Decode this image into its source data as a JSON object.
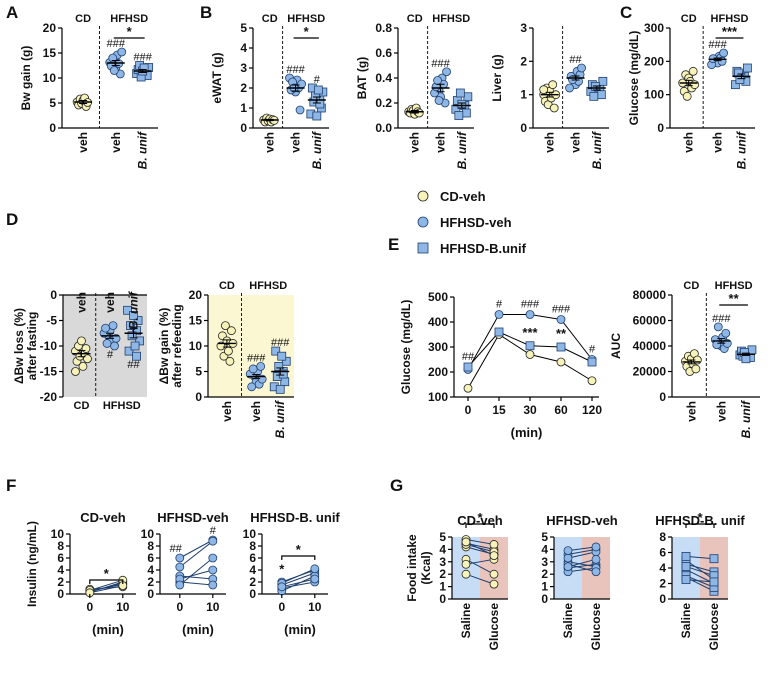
{
  "panel_labels": [
    "A",
    "B",
    "C",
    "D",
    "E",
    "F",
    "G"
  ],
  "groups": {
    "cd": "CD",
    "hfhsd": "HFHSD"
  },
  "colors": {
    "cd_fill": "#f6f2b8",
    "hf_fill": "#8fb7e6",
    "hf_stroke": "#1f3f6e",
    "fast_shade": "#d9d9d9",
    "refeed_shade": "#fbf7d2",
    "saline_shade": "#c6ddf5",
    "glucose_shade": "#e8c4bd"
  },
  "chart_data": [
    {
      "id": "A",
      "type": "scatter",
      "ylabel": "Bw gain (g)",
      "ylim": [
        0,
        20
      ],
      "yticks": [
        0,
        5,
        10,
        15,
        20
      ],
      "categories": [
        "veh",
        "veh",
        "B. unif"
      ],
      "values": [
        [
          5.2,
          4.6,
          5.8,
          4.9,
          5.5,
          6.0,
          4.3,
          5.1
        ],
        [
          13.5,
          11.8,
          14.6,
          12.9,
          10.8,
          15.2,
          13.1,
          12.4,
          14.0,
          11.5
        ],
        [
          11.2,
          10.5,
          12.1,
          10.9,
          11.7,
          12.5,
          10.2,
          11.4,
          12.0
        ]
      ],
      "means": [
        5.2,
        13.0,
        11.4
      ],
      "sems": [
        0.3,
        0.5,
        0.3
      ],
      "hash": [
        "",
        "###",
        "###"
      ],
      "sig": "*"
    },
    {
      "id": "B-eWAT",
      "type": "scatter",
      "ylabel": "eWAT (g)",
      "ylim": [
        0,
        5
      ],
      "yticks": [
        0,
        1,
        2,
        3,
        4,
        5
      ],
      "categories": [
        "veh",
        "veh",
        "B. unif"
      ],
      "values": [
        [
          0.4,
          0.3,
          0.5,
          0.35,
          0.45,
          0.3,
          0.42,
          0.38
        ],
        [
          2.1,
          1.8,
          2.4,
          2.0,
          0.9,
          2.2,
          2.5,
          1.9,
          2.3,
          2.0
        ],
        [
          1.5,
          1.0,
          1.8,
          0.7,
          2.0,
          1.3,
          1.6,
          0.6,
          1.9,
          1.2
        ]
      ],
      "means": [
        0.4,
        2.0,
        1.4
      ],
      "sems": [
        0.03,
        0.15,
        0.15
      ],
      "hash": [
        "",
        "###",
        "#"
      ],
      "sig": "*"
    },
    {
      "id": "B-BAT",
      "type": "scatter",
      "ylabel": "BAT (g)",
      "ylim": [
        0,
        0.8
      ],
      "yticks": [
        0,
        0.2,
        0.4,
        0.6,
        0.8
      ],
      "ytick_labels": [
        "0.0",
        "0.2",
        "0.4",
        "0.6",
        "0.8"
      ],
      "categories": [
        "veh",
        "veh",
        "B. unif"
      ],
      "values": [
        [
          0.13,
          0.12,
          0.15,
          0.14,
          0.11,
          0.16,
          0.13,
          0.12
        ],
        [
          0.3,
          0.25,
          0.4,
          0.35,
          0.2,
          0.45,
          0.28,
          0.33,
          0.38,
          0.22
        ],
        [
          0.18,
          0.12,
          0.25,
          0.15,
          0.22,
          0.1,
          0.28,
          0.19
        ]
      ],
      "means": [
        0.13,
        0.32,
        0.18
      ],
      "sems": [
        0.01,
        0.03,
        0.02
      ],
      "hash": [
        "",
        "###",
        ""
      ],
      "sig": ""
    },
    {
      "id": "B-Liver",
      "type": "scatter",
      "ylabel": "Liver (g)",
      "ylim": [
        0,
        3
      ],
      "yticks": [
        0,
        1,
        2,
        3
      ],
      "categories": [
        "veh",
        "veh",
        "B. unif"
      ],
      "values": [
        [
          1.0,
          0.8,
          1.2,
          0.7,
          1.1,
          0.9,
          1.3,
          0.6,
          1.0,
          1.15
        ],
        [
          1.5,
          1.3,
          1.7,
          1.4,
          1.6,
          1.8,
          1.2,
          1.55,
          1.45
        ],
        [
          1.2,
          1.0,
          1.4,
          1.1,
          1.3,
          0.95,
          1.25
        ]
      ],
      "means": [
        1.0,
        1.5,
        1.2
      ],
      "sems": [
        0.07,
        0.06,
        0.06
      ],
      "hash": [
        "",
        "##",
        ""
      ],
      "sig": ""
    },
    {
      "id": "C",
      "type": "scatter",
      "ylabel": "Glucose (mg/dL)",
      "ylim": [
        0,
        300
      ],
      "yticks": [
        0,
        100,
        200,
        300
      ],
      "categories": [
        "veh",
        "veh",
        "B. unif"
      ],
      "values": [
        [
          135,
          110,
          160,
          95,
          150,
          140,
          120,
          170,
          130
        ],
        [
          205,
          195,
          215,
          210,
          200,
          225,
          190,
          208
        ],
        [
          155,
          140,
          180,
          130,
          170,
          165,
          145
        ]
      ],
      "means": [
        135,
        206,
        155
      ],
      "sems": [
        8,
        4,
        7
      ],
      "hash": [
        "",
        "###",
        ""
      ],
      "sig": "***"
    },
    {
      "id": "D-fast",
      "type": "scatter",
      "ylabel": "ΔBw loss (%)",
      "ylabel2": "after fasting",
      "ylim": [
        -20,
        0
      ],
      "yticks": [
        -20,
        -15,
        -10,
        -5,
        0
      ],
      "ytick_labels": [
        "-20",
        "-15",
        "-10",
        "-5",
        "0"
      ],
      "categories": [
        "veh",
        "veh",
        "B. unif"
      ],
      "values": [
        [
          -11,
          -13,
          -10,
          -12,
          -9,
          -14,
          -11.5,
          -10.5,
          -12.5,
          -15
        ],
        [
          -8,
          -7,
          -9,
          -6,
          -10,
          -8.5,
          -7.5,
          -6.5,
          -9.5
        ],
        [
          -7,
          -5,
          -9,
          -3,
          -11,
          -6,
          -8,
          -4,
          -10,
          -12
        ]
      ],
      "means": [
        -11.5,
        -8.0,
        -7.5
      ],
      "sems": [
        0.6,
        0.5,
        0.9
      ],
      "hash": [
        "",
        "#",
        "##"
      ],
      "sig": ""
    },
    {
      "id": "D-refeed",
      "type": "scatter",
      "ylabel": "ΔBw gain (%)",
      "ylabel2": "after refeeding",
      "ylim": [
        0,
        20
      ],
      "yticks": [
        0,
        5,
        10,
        15,
        20
      ],
      "categories": [
        "veh",
        "veh",
        "B. unif"
      ],
      "values": [
        [
          10,
          12,
          8,
          14,
          11,
          9,
          7,
          13,
          10.5
        ],
        [
          4,
          3,
          5,
          2.5,
          6,
          3.5,
          4.5,
          2,
          5.5
        ],
        [
          5,
          3,
          7,
          2,
          9,
          4,
          6,
          1.5,
          8,
          4.5
        ]
      ],
      "means": [
        10.5,
        4.0,
        5.0
      ],
      "sems": [
        0.7,
        0.4,
        0.7
      ],
      "hash": [
        "",
        "###",
        "###"
      ],
      "sig": ""
    },
    {
      "id": "E-gtt",
      "type": "line",
      "ylabel": "Glucose (mg/dL)",
      "xlabel": "(min)",
      "ylim": [
        100,
        500
      ],
      "yticks": [
        100,
        200,
        300,
        400,
        500
      ],
      "x": [
        "0",
        "15",
        "30",
        "60",
        "120"
      ],
      "series": [
        {
          "name": "CD-veh",
          "values": [
            135,
            350,
            270,
            240,
            165
          ]
        },
        {
          "name": "HFHSD-veh",
          "values": [
            210,
            430,
            430,
            410,
            250
          ]
        },
        {
          "name": "HFHSD-B.unif",
          "values": [
            220,
            360,
            305,
            300,
            240
          ]
        }
      ],
      "hash_labels": [
        "##",
        "#",
        "###",
        "###",
        "#"
      ],
      "star_labels": [
        "",
        "",
        "***",
        "**",
        ""
      ]
    },
    {
      "id": "E-auc",
      "type": "scatter",
      "ylabel": "AUC",
      "ylim": [
        0,
        80000
      ],
      "yticks": [
        0,
        20000,
        40000,
        60000,
        80000
      ],
      "categories": [
        "veh",
        "veh",
        "B. unif"
      ],
      "values": [
        [
          28000,
          24000,
          32000,
          20000,
          30000,
          26000,
          34000,
          22000,
          29000
        ],
        [
          43000,
          40000,
          47000,
          38000,
          50000,
          42000,
          45000,
          41000,
          55000
        ],
        [
          34000,
          31000,
          37000,
          33000,
          36000,
          32000,
          35000,
          30000
        ]
      ],
      "means": [
        27500,
        44000,
        33500
      ],
      "sems": [
        1500,
        1800,
        900
      ],
      "hash": [
        "",
        "###",
        ""
      ],
      "sig": "**"
    },
    {
      "id": "F-cd",
      "type": "paired",
      "title": "CD-veh",
      "ylabel": "Insulin (ng/mL)",
      "xlabel": "(min)",
      "ylim": [
        0,
        10
      ],
      "yticks": [
        0,
        2,
        4,
        6,
        8,
        10
      ],
      "x": [
        "0",
        "10"
      ],
      "pairs": [
        [
          0.5,
          1.6
        ],
        [
          0.3,
          2.0
        ],
        [
          0.8,
          1.2
        ],
        [
          0.4,
          1.8
        ],
        [
          0.6,
          2.3
        ],
        [
          0.2,
          1.4
        ]
      ],
      "hash": [
        "",
        ""
      ],
      "sig": "*",
      "star0": ""
    },
    {
      "id": "F-hf",
      "type": "paired",
      "title": "HFHSD-veh",
      "ylabel": "",
      "xlabel": "(min)",
      "ylim": [
        0,
        10
      ],
      "yticks": [
        0,
        2,
        4,
        6,
        8,
        10
      ],
      "x": [
        "0",
        "10"
      ],
      "pairs": [
        [
          6,
          9
        ],
        [
          4.5,
          8.8
        ],
        [
          3,
          2.5
        ],
        [
          2,
          1.5
        ],
        [
          2.5,
          4
        ],
        [
          1.5,
          6
        ]
      ],
      "hash": [
        "##",
        "#"
      ],
      "sig": "",
      "star0": ""
    },
    {
      "id": "F-bu",
      "type": "paired",
      "title": "HFHSD-B. unif",
      "ylabel": "",
      "xlabel": "(min)",
      "ylim": [
        0,
        10
      ],
      "yticks": [
        0,
        2,
        4,
        6,
        8,
        10
      ],
      "x": [
        "0",
        "10"
      ],
      "pairs": [
        [
          2,
          4
        ],
        [
          1.5,
          3.5
        ],
        [
          1,
          2
        ],
        [
          0.5,
          3
        ],
        [
          1.8,
          4.2
        ],
        [
          1.2,
          2.5
        ]
      ],
      "hash": [
        "",
        ""
      ],
      "sig": "*",
      "star0": "*"
    },
    {
      "id": "G-cd",
      "type": "paired",
      "title": "CD-veh",
      "ylabel": "Food intake (Kcal)",
      "ylim": [
        0,
        5
      ],
      "yticks": [
        0,
        1,
        2,
        3,
        4,
        5
      ],
      "x": [
        "Saline",
        "Glucose"
      ],
      "pairs": [
        [
          4.5,
          4.0
        ],
        [
          4.2,
          3.6
        ],
        [
          4.8,
          4.4
        ],
        [
          2.0,
          1.2
        ],
        [
          3.2,
          2.0
        ],
        [
          4.4,
          3.8
        ],
        [
          2.8,
          3.2
        ],
        [
          4.6,
          3.5
        ]
      ],
      "hash": [
        "",
        ""
      ],
      "sig": "*",
      "star0": ""
    },
    {
      "id": "G-hf",
      "type": "paired",
      "title": "HFHSD-veh",
      "ylabel": "",
      "ylim": [
        0,
        5
      ],
      "yticks": [
        0,
        1,
        2,
        3,
        4,
        5
      ],
      "x": [
        "Saline",
        "Glucose"
      ],
      "pairs": [
        [
          2.5,
          2.8
        ],
        [
          3.0,
          2.6
        ],
        [
          3.6,
          4.0
        ],
        [
          2.2,
          2.5
        ],
        [
          2.8,
          2.2
        ],
        [
          3.3,
          3.8
        ],
        [
          3.9,
          4.2
        ],
        [
          2.6,
          3.2
        ]
      ],
      "hash": [
        "",
        ""
      ],
      "sig": "",
      "star0": ""
    },
    {
      "id": "G-bu",
      "type": "paired",
      "title": "HFHSD-B. unif",
      "ylabel": "",
      "ylim": [
        0,
        8
      ],
      "yticks": [
        0,
        2,
        4,
        6,
        8
      ],
      "x": [
        "Saline",
        "Glucose"
      ],
      "pairs": [
        [
          4.5,
          3.5
        ],
        [
          5.0,
          2.5
        ],
        [
          3.8,
          2.0
        ],
        [
          2.8,
          1.0
        ],
        [
          4.2,
          3.0
        ],
        [
          3.0,
          1.5
        ],
        [
          2.5,
          2.2
        ],
        [
          5.5,
          5.2
        ]
      ],
      "hash": [
        "",
        ""
      ],
      "sig": "*",
      "star0": ""
    }
  ]
}
